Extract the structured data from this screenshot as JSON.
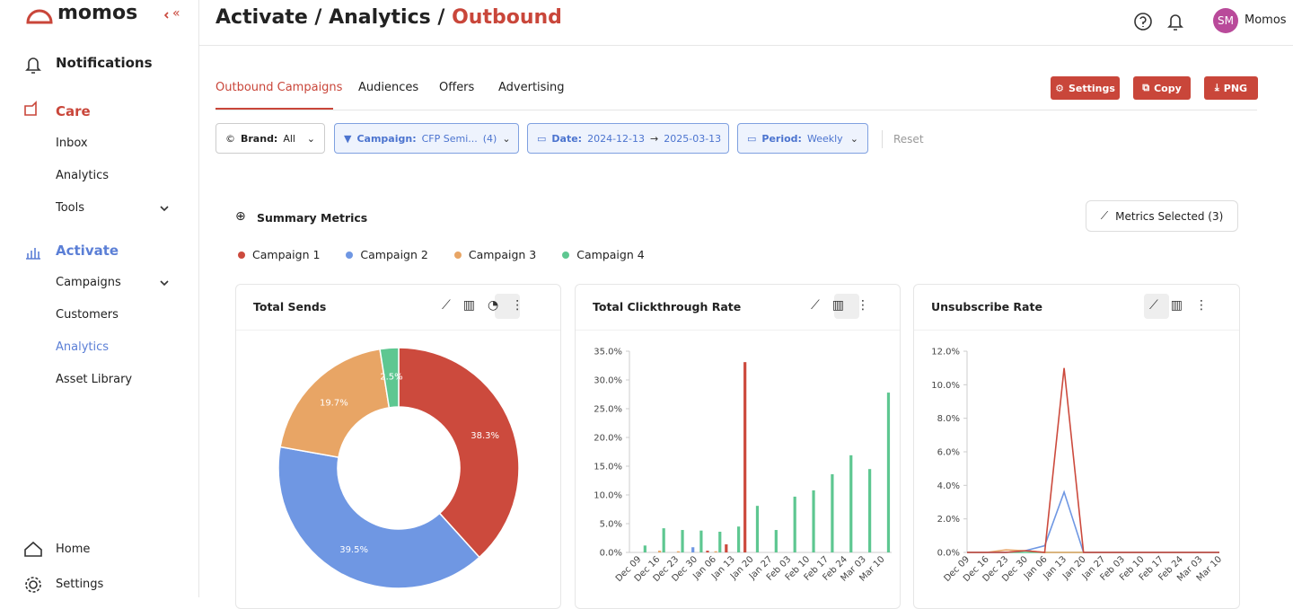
{
  "sidebar": {
    "logo": "momos",
    "collapse": "«",
    "items": [
      "Notifications",
      "Care",
      "Inbox",
      "Analytics",
      "Tools",
      "Activate",
      "Campaigns",
      "Customers",
      "Analytics",
      "Asset Library"
    ],
    "footer": [
      "Home",
      "Settings"
    ]
  },
  "header": {
    "breadcrumb": "Activate / Analytics / ",
    "current": "Outbound",
    "avatar": "SM",
    "user": "Momos"
  },
  "tabs": [
    "Outbound Campaigns",
    "Audiences",
    "Offers",
    "Advertising"
  ],
  "buttons": [
    "Settings",
    "Copy",
    "PNG"
  ],
  "filters": {
    "brand": {
      "label": "Brand:",
      "value": "All"
    },
    "campaign": {
      "label": "Campaign:",
      "value": "CFP Semi...",
      "count": "(4)"
    },
    "date": {
      "label": "Date:",
      "start": "2024-12-13",
      "arrow": "→",
      "end": "2025-03-13"
    },
    "period": {
      "label": "Period:",
      "value": "Weekly"
    },
    "reset": "Reset"
  },
  "summary": {
    "title": "Summary Metrics",
    "metrics_button": "Metrics Selected (3)",
    "legend": [
      {
        "name": "Campaign 1",
        "color": "#cc4a3d"
      },
      {
        "name": "Campaign 2",
        "color": "#6f97e3"
      },
      {
        "name": "Campaign 3",
        "color": "#e8a565"
      },
      {
        "name": "Campaign 4",
        "color": "#5ec791"
      }
    ]
  },
  "chart_data": [
    {
      "type": "pie",
      "title": "Total Sends",
      "donut": true,
      "values": [
        38.3,
        39.5,
        19.7,
        2.5
      ],
      "value_labels": [
        "38.3%",
        "39.5%",
        "19.7%",
        "2.5%"
      ],
      "colors": [
        "#cc4a3d",
        "#6f97e3",
        "#e8a565",
        "#5ec791"
      ]
    },
    {
      "type": "bar",
      "title": "Total Clickthrough Rate",
      "categories": [
        "Dec 09",
        "Dec 16",
        "Dec 23",
        "Dec 30",
        "Jan 06",
        "Jan 13",
        "Jan 20",
        "Jan 27",
        "Feb 03",
        "Feb 10",
        "Feb 17",
        "Feb 24",
        "Mar 03",
        "Mar 10"
      ],
      "series": [
        {
          "color": "#cc4a3d",
          "values": [
            0,
            0,
            0,
            0,
            0.3,
            1.4,
            33.1,
            0,
            0,
            0,
            0,
            0,
            0,
            0
          ]
        },
        {
          "color": "#6f97e3",
          "values": [
            0,
            0,
            0,
            0.9,
            0,
            0,
            0,
            0,
            0,
            0,
            0,
            0,
            0,
            0
          ]
        },
        {
          "color": "#e8a565",
          "values": [
            0,
            0.3,
            0.2,
            0,
            0.2,
            0,
            0,
            0,
            0,
            0,
            0,
            0,
            0,
            0
          ]
        },
        {
          "color": "#5ec791",
          "values": [
            1.2,
            4.2,
            3.9,
            3.8,
            3.6,
            4.5,
            8.1,
            3.9,
            9.7,
            10.8,
            13.6,
            16.9,
            14.5,
            27.8
          ]
        }
      ],
      "ylim": [
        0,
        35
      ],
      "yticks": [
        {
          "value": 0,
          "label": "0.0%"
        },
        {
          "value": 5,
          "label": "5.0%"
        },
        {
          "value": 10,
          "label": "10.0%"
        },
        {
          "value": 15,
          "label": "15.0%"
        },
        {
          "value": 20,
          "label": "20.0%"
        },
        {
          "value": 25,
          "label": "25.0%"
        },
        {
          "value": 30,
          "label": "30.0%"
        },
        {
          "value": 35,
          "label": "35.0%"
        }
      ]
    },
    {
      "type": "line",
      "title": "Unsubscribe Rate",
      "categories": [
        "Dec 09",
        "Dec 16",
        "Dec 23",
        "Dec 30",
        "Jan 06",
        "Jan 13",
        "Jan 20",
        "Jan 27",
        "Feb 03",
        "Feb 10",
        "Feb 17",
        "Feb 24",
        "Mar 03",
        "Mar 10"
      ],
      "series": [
        {
          "color": "#cc4a3d",
          "values": [
            0,
            0,
            0,
            0.1,
            0,
            11.0,
            0,
            0,
            0,
            0,
            0,
            0,
            0,
            0
          ]
        },
        {
          "color": "#6f97e3",
          "values": [
            0,
            0,
            0,
            0.1,
            0.4,
            3.6,
            0,
            0,
            0,
            0,
            0,
            0,
            0,
            0
          ]
        },
        {
          "color": "#e8a565",
          "values": [
            0,
            0,
            0.15,
            0.1,
            0,
            0,
            0,
            0,
            0,
            0,
            0,
            0,
            0,
            0
          ]
        },
        {
          "color": "#5ec791",
          "values": [
            0,
            0,
            0,
            0,
            0,
            0,
            0,
            0,
            0,
            0,
            0,
            0,
            0,
            0
          ]
        }
      ],
      "ylim": [
        0,
        12
      ],
      "yticks": [
        {
          "value": 0,
          "label": "0.0%"
        },
        {
          "value": 2,
          "label": "2.0%"
        },
        {
          "value": 4,
          "label": "4.0%"
        },
        {
          "value": 6,
          "label": "6.0%"
        },
        {
          "value": 8,
          "label": "8.0%"
        },
        {
          "value": 10,
          "label": "10.0%"
        },
        {
          "value": 12,
          "label": "12.0%"
        }
      ]
    }
  ]
}
